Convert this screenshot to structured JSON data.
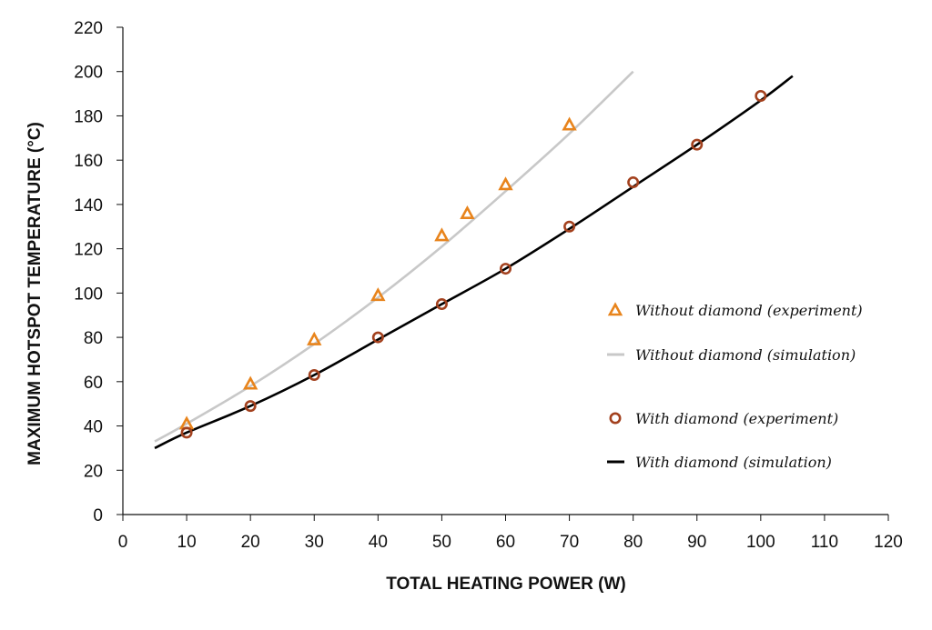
{
  "chart_data": {
    "type": "scatter",
    "title": "",
    "xlabel": "TOTAL HEATING POWER (W)",
    "ylabel": "MAXIMUM HOTSPOT TEMPERATURE (°C)",
    "xlim": [
      0,
      120
    ],
    "ylim": [
      0,
      220
    ],
    "xticks": [
      "0",
      "10",
      "20",
      "30",
      "40",
      "50",
      "60",
      "70",
      "80",
      "90",
      "100",
      "110",
      "120"
    ],
    "yticks": [
      "0",
      "20",
      "40",
      "60",
      "80",
      "100",
      "120",
      "140",
      "160",
      "180",
      "200",
      "220"
    ],
    "grid": false,
    "legend_position": "right",
    "series": [
      {
        "name": "Without diamond (experiment)",
        "kind": "marker-triangle",
        "color": "#e8841c",
        "x": [
          10,
          20,
          30,
          40,
          50,
          54,
          60,
          70
        ],
        "y": [
          41,
          59,
          79,
          99,
          126,
          136,
          149,
          176
        ]
      },
      {
        "name": "Without diamond (simulation)",
        "kind": "line",
        "color": "#c8c8c8",
        "x": [
          5,
          10,
          20,
          30,
          40,
          50,
          60,
          70,
          80
        ],
        "y": [
          33,
          41,
          58,
          77,
          98,
          121,
          146,
          172,
          200
        ]
      },
      {
        "name": "With diamond (experiment)",
        "kind": "marker-circle",
        "color": "#a3411e",
        "x": [
          10,
          20,
          30,
          40,
          50,
          60,
          70,
          80,
          90,
          100
        ],
        "y": [
          37,
          49,
          63,
          80,
          95,
          111,
          130,
          150,
          167,
          189
        ]
      },
      {
        "name": "With diamond (simulation)",
        "kind": "line",
        "color": "#000000",
        "x": [
          5,
          10,
          20,
          30,
          40,
          50,
          60,
          70,
          80,
          90,
          100,
          105
        ],
        "y": [
          30,
          37,
          49,
          63,
          79,
          95,
          111,
          129,
          148,
          167,
          187,
          198
        ]
      }
    ]
  }
}
